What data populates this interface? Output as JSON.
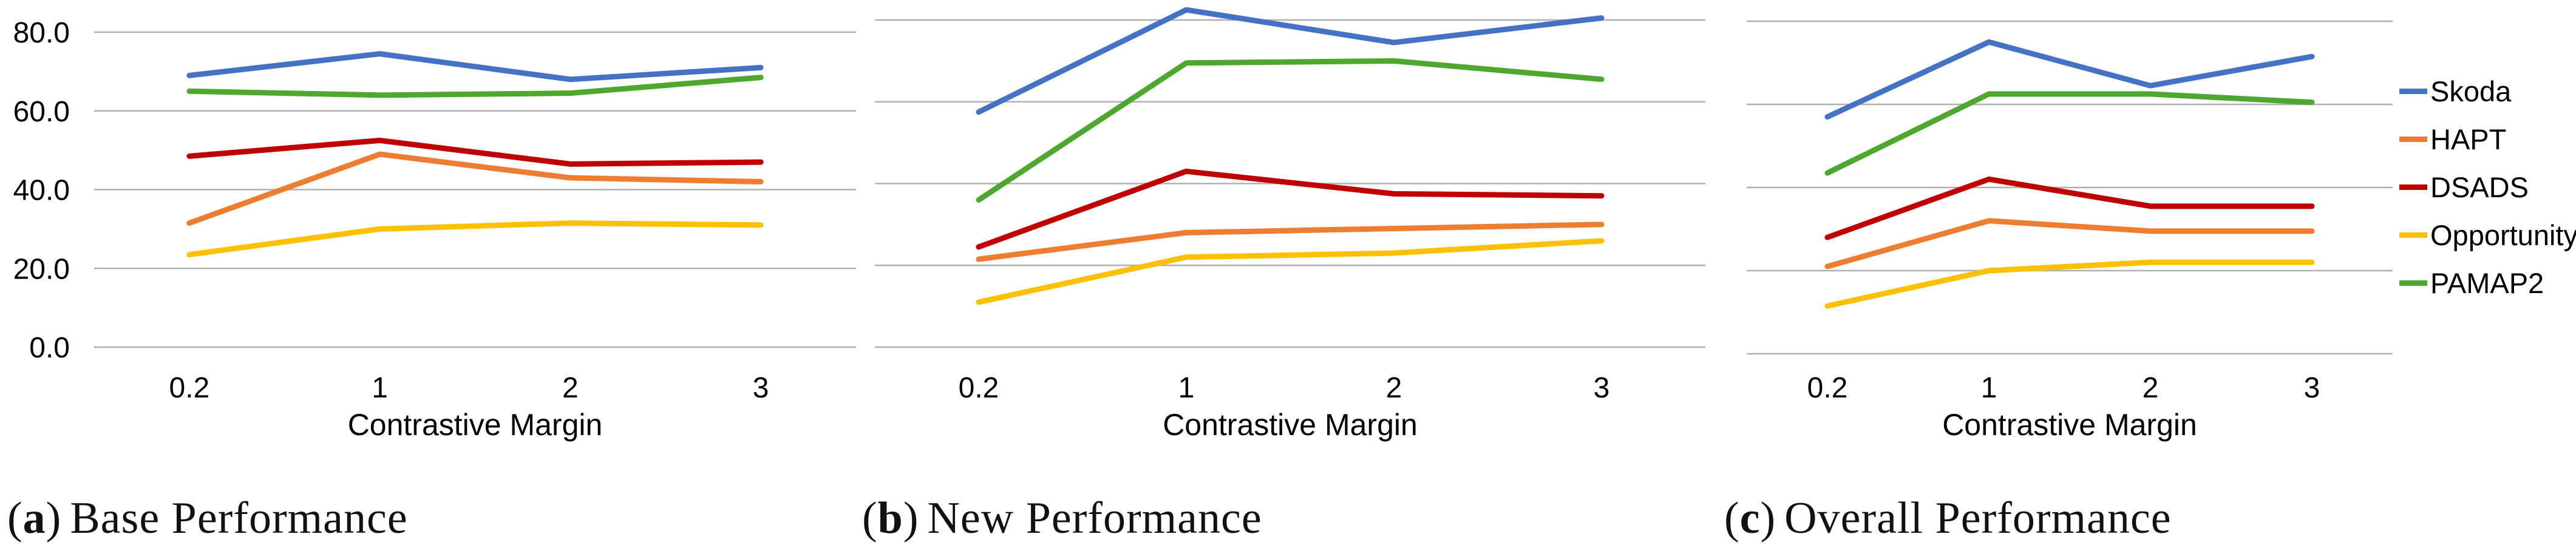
{
  "figure": {
    "background": "#FFFFFF",
    "gridline_color": "#B0B0B0",
    "text_color": "#000000"
  },
  "legend": {
    "position": "right",
    "items": [
      {
        "label": "Skoda",
        "color": "#4472C4"
      },
      {
        "label": "HAPT",
        "color": "#ED7D31"
      },
      {
        "label": "DSADS",
        "color": "#C00000"
      },
      {
        "label": "Opportunity",
        "color": "#FFC000"
      },
      {
        "label": "PAMAP2",
        "color": "#4EA72E"
      }
    ]
  },
  "chart_data": [
    {
      "type": "line",
      "title": "(a) Base Performance",
      "caption": {
        "open": "(",
        "letter": "a",
        "close": ")",
        "text": "Base Performance"
      },
      "xlabel": "Contrastive Margin",
      "ylabel": "",
      "categories": [
        "0.2",
        "1",
        "2",
        "3"
      ],
      "ylim": [
        0,
        80
      ],
      "yticks": [
        80,
        60,
        40,
        20,
        0
      ],
      "ytick_labels": [
        "80.0",
        "60.0",
        "40.0",
        "20.0",
        "0.0"
      ],
      "grid": true,
      "series": [
        {
          "name": "Skoda",
          "values": [
            69,
            74.5,
            68,
            71
          ]
        },
        {
          "name": "HAPT",
          "values": [
            31.5,
            49,
            43,
            42
          ]
        },
        {
          "name": "DSADS",
          "values": [
            48.5,
            52.5,
            46.5,
            47
          ]
        },
        {
          "name": "Opportunity",
          "values": [
            23.5,
            30,
            31.5,
            31
          ]
        },
        {
          "name": "PAMAP2",
          "values": [
            65,
            64,
            64.5,
            68.5
          ]
        }
      ]
    },
    {
      "type": "line",
      "title": "(b) New Performance",
      "caption": {
        "open": "(",
        "letter": "b",
        "close": ")",
        "text": "New Performance"
      },
      "xlabel": "Contrastive Margin",
      "ylabel": "",
      "categories": [
        "0.2",
        "1",
        "2",
        "3"
      ],
      "ylim": [
        0,
        80
      ],
      "yticks": [
        80,
        60,
        40,
        20,
        0
      ],
      "ytick_labels": [],
      "grid": true,
      "series": [
        {
          "name": "Skoda",
          "values": [
            57.5,
            82.5,
            74.5,
            80.5
          ]
        },
        {
          "name": "HAPT",
          "values": [
            21.5,
            28,
            29,
            30
          ]
        },
        {
          "name": "DSADS",
          "values": [
            24.5,
            43,
            37.5,
            37
          ]
        },
        {
          "name": "Opportunity",
          "values": [
            11,
            22,
            23,
            26
          ]
        },
        {
          "name": "PAMAP2",
          "values": [
            36,
            69.5,
            70,
            65.5
          ]
        }
      ]
    },
    {
      "type": "line",
      "title": "(c) Overall Performance",
      "caption": {
        "open": "(",
        "letter": "c",
        "close": ")",
        "text": "Overall Performance"
      },
      "xlabel": "Contrastive Margin",
      "ylabel": "",
      "categories": [
        "0.2",
        "1",
        "2",
        "3"
      ],
      "ylim": [
        0,
        80
      ],
      "yticks": [
        80,
        60,
        40,
        20,
        0
      ],
      "ytick_labels": [],
      "grid": true,
      "series": [
        {
          "name": "Skoda",
          "values": [
            57,
            75,
            64.5,
            71.5
          ]
        },
        {
          "name": "HAPT",
          "values": [
            21,
            32,
            29.5,
            29.5
          ]
        },
        {
          "name": "DSADS",
          "values": [
            28,
            42,
            35.5,
            35.5
          ]
        },
        {
          "name": "Opportunity",
          "values": [
            11.5,
            20,
            22,
            22
          ]
        },
        {
          "name": "PAMAP2",
          "values": [
            43.5,
            62.5,
            62.5,
            60.5
          ]
        }
      ]
    }
  ]
}
